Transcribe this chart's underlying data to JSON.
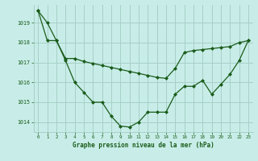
{
  "background_color": "#c8ede8",
  "grid_color": "#a8cfc8",
  "line_color": "#1a5c1a",
  "marker_color": "#1a5c1a",
  "xlabel": "Graphe pression niveau de la mer (hPa)",
  "xlim": [
    -0.5,
    23.5
  ],
  "ylim": [
    1013.5,
    1019.9
  ],
  "yticks": [
    1014,
    1015,
    1016,
    1017,
    1018,
    1019
  ],
  "xticks": [
    0,
    1,
    2,
    3,
    4,
    5,
    6,
    7,
    8,
    9,
    10,
    11,
    12,
    13,
    14,
    15,
    16,
    17,
    18,
    19,
    20,
    21,
    22,
    23
  ],
  "series1": [
    1019.6,
    1019.0,
    1018.1,
    1017.1,
    1016.0,
    1015.5,
    1015.0,
    1015.0,
    1014.3,
    1013.8,
    1013.75,
    1014.0,
    1014.5,
    1014.5,
    1014.5,
    1015.4,
    1015.8,
    1015.8,
    1016.1,
    1015.4,
    1015.9,
    1016.4,
    1017.1,
    1018.1
  ],
  "series2": [
    1019.6,
    1018.1,
    1018.1,
    1017.2,
    1017.2,
    1017.05,
    1016.95,
    1016.85,
    1016.75,
    1016.65,
    1016.55,
    1016.45,
    1016.35,
    1016.25,
    1016.2,
    1016.7,
    1017.5,
    1017.6,
    1017.65,
    1017.7,
    1017.75,
    1017.8,
    1018.0,
    1018.1
  ]
}
